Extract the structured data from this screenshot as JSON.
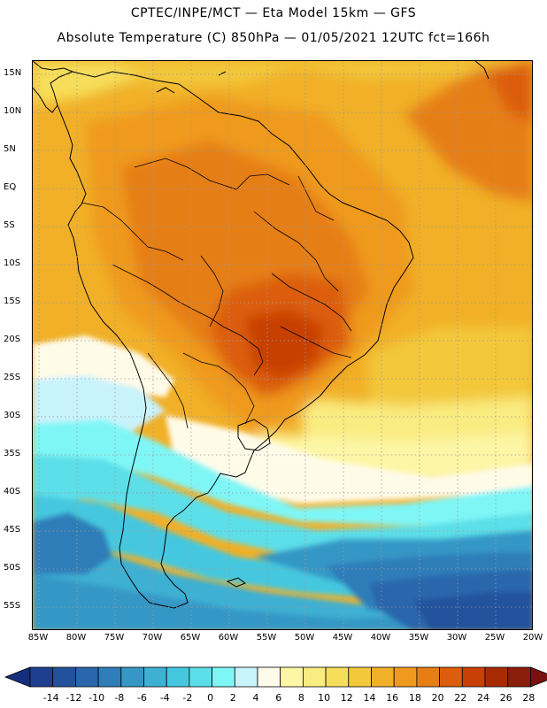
{
  "header": {
    "title_line1": "CPTEC/INPE/MCT —  Eta Model 15km — GFS",
    "title_line2": "Absolute Temperature (C) 850hPa — 01/05/2021 12UTC fct=166h"
  },
  "map": {
    "lat_labels": [
      "15N",
      "10N",
      "5N",
      "EQ",
      "5S",
      "10S",
      "15S",
      "20S",
      "25S",
      "30S",
      "35S",
      "40S",
      "45S",
      "50S",
      "55S"
    ],
    "lon_labels": [
      "85W",
      "80W",
      "75W",
      "70W",
      "65W",
      "60W",
      "55W",
      "50W",
      "45W",
      "40W",
      "35W",
      "30W",
      "25W",
      "20W"
    ]
  },
  "legend": {
    "labels": [
      "-14",
      "-12",
      "-10",
      "-8",
      "-6",
      "-4",
      "-2",
      "0",
      "2",
      "4",
      "6",
      "8",
      "10",
      "12",
      "14",
      "16",
      "18",
      "20",
      "22",
      "24",
      "26",
      "28"
    ],
    "colors": [
      "#1e3f8f",
      "#23529c",
      "#2a66ab",
      "#2f7db9",
      "#3597c6",
      "#3db0d3",
      "#45c8df",
      "#5cdfe9",
      "#7ff6f6",
      "#c9f3fb",
      "#fffbe9",
      "#fdf6a6",
      "#f9ec80",
      "#f7de5a",
      "#f3c83a",
      "#f1b028",
      "#ef9a1e",
      "#e67e14",
      "#dc5d0c",
      "#c84006",
      "#a82a04",
      "#8a1e0a"
    ],
    "arrow_low_color": "#14307d",
    "arrow_high_color": "#7a1010"
  }
}
